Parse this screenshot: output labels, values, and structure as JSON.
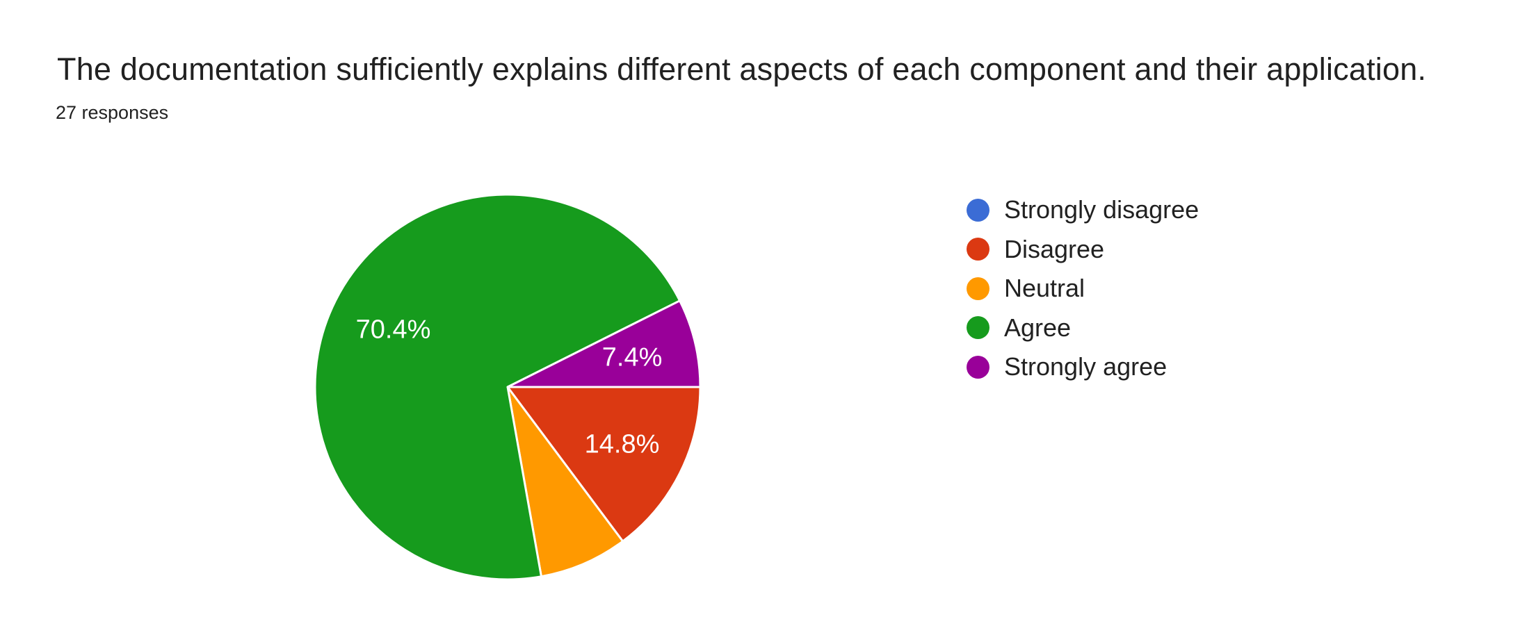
{
  "question": {
    "title": "The documentation sufficiently explains different aspects of each component and their application.",
    "responses_label": "27 responses"
  },
  "chart_data": {
    "type": "pie",
    "title": "The documentation sufficiently explains different aspects of each component and their application.",
    "subtitle": "27 responses",
    "total_responses": 27,
    "categories": [
      "Strongly disagree",
      "Disagree",
      "Neutral",
      "Agree",
      "Strongly agree"
    ],
    "values_percent": [
      0,
      14.8,
      7.4,
      70.4,
      7.4
    ],
    "displayed_slice_labels": [
      "",
      "14.8%",
      "",
      "70.4%",
      "7.4%"
    ],
    "colors": [
      "#3B6CD5",
      "#DB3912",
      "#FF9900",
      "#169B1D",
      "#990099"
    ],
    "start_angle_deg": 0,
    "direction": "clockwise",
    "legend_position": "right",
    "slice_label_color": "#ffffff",
    "slice_border_color": "#ffffff",
    "grid": false
  },
  "legend": {
    "items": [
      {
        "label": "Strongly disagree",
        "color": "#3B6CD5"
      },
      {
        "label": "Disagree",
        "color": "#DB3912"
      },
      {
        "label": "Neutral",
        "color": "#FF9900"
      },
      {
        "label": "Agree",
        "color": "#169B1D"
      },
      {
        "label": "Strongly agree",
        "color": "#990099"
      }
    ]
  },
  "theme": {
    "background": "#ffffff",
    "text_color": "#212121"
  }
}
